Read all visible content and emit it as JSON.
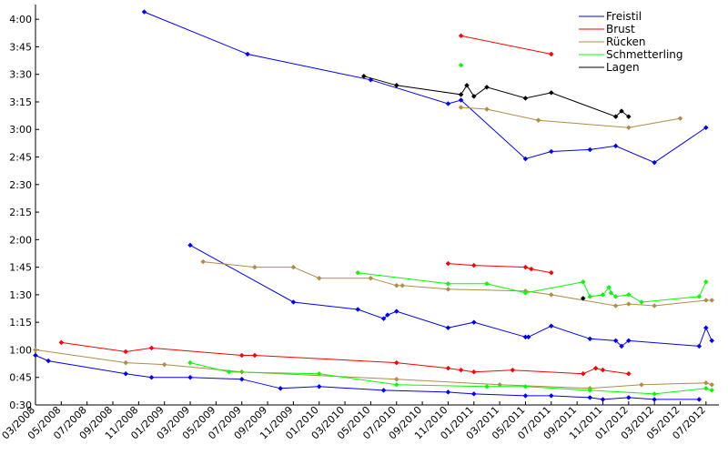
{
  "chart_data": {
    "type": "line",
    "title": "",
    "xlabel": "",
    "ylabel": "",
    "x_tick_labels": [
      "03/2008",
      "05/2008",
      "07/2008",
      "09/2008",
      "11/2008",
      "01/2009",
      "03/2009",
      "05/2009",
      "07/2009",
      "09/2009",
      "11/2009",
      "01/2010",
      "03/2010",
      "05/2010",
      "07/2010",
      "09/2010",
      "11/2010",
      "01/2011",
      "03/2011",
      "05/2011",
      "07/2011",
      "09/2011",
      "11/2011",
      "01/2012",
      "03/2012",
      "05/2012",
      "07/2012"
    ],
    "y_ticks": [
      {
        "value": 30,
        "label": "0:30"
      },
      {
        "value": 45,
        "label": "0:45"
      },
      {
        "value": 60,
        "label": "1:00"
      },
      {
        "value": 75,
        "label": "1:15"
      },
      {
        "value": 90,
        "label": "1:30"
      },
      {
        "value": 105,
        "label": "1:45"
      },
      {
        "value": 120,
        "label": "2:00"
      },
      {
        "value": 135,
        "label": "2:15"
      },
      {
        "value": 150,
        "label": "2:30"
      },
      {
        "value": 165,
        "label": "2:45"
      },
      {
        "value": 180,
        "label": "3:00"
      },
      {
        "value": 195,
        "label": "3:15"
      },
      {
        "value": 210,
        "label": "3:30"
      },
      {
        "value": 225,
        "label": "3:45"
      },
      {
        "value": 240,
        "label": "4:00"
      }
    ],
    "x_range": [
      "2008-03",
      "2012-08"
    ],
    "y_range_seconds": [
      30,
      248
    ],
    "x_unit": "date (YYYY-MM-DD)",
    "y_unit": "seconds (displayed as m:ss)",
    "grid": false,
    "legend_position": "top-right",
    "series": [
      {
        "name": "Freistil",
        "color": "#0000ff",
        "lines": [
          [
            [
              "2008-11-14",
              244
            ],
            [
              "2009-07-15",
              221
            ],
            [
              "2010-05-01",
              207
            ],
            [
              "2010-11-01",
              194
            ],
            [
              "2010-12-01",
              196
            ],
            [
              "2011-05-01",
              164
            ],
            [
              "2011-07-01",
              168
            ],
            [
              "2011-10-01",
              169
            ],
            [
              "2011-12-01",
              171
            ],
            [
              "2012-03-01",
              162
            ],
            [
              "2012-07-01",
              181
            ]
          ],
          [
            [
              "2009-03-01",
              117
            ],
            [
              "2009-11-01",
              86
            ],
            [
              "2010-04-01",
              82
            ],
            [
              "2010-06-01",
              77
            ],
            [
              "2010-06-10",
              79
            ],
            [
              "2010-07-01",
              81
            ],
            [
              "2010-11-01",
              72
            ],
            [
              "2011-01-01",
              75
            ],
            [
              "2011-05-01",
              67
            ],
            [
              "2011-05-08",
              67
            ],
            [
              "2011-07-01",
              73
            ],
            [
              "2011-10-01",
              66
            ],
            [
              "2011-12-01",
              65
            ],
            [
              "2011-12-15",
              62
            ],
            [
              "2012-01-01",
              65
            ],
            [
              "2012-06-15",
              62
            ],
            [
              "2012-07-01",
              72
            ],
            [
              "2012-07-15",
              65
            ]
          ],
          [
            [
              "2008-03-01",
              57
            ],
            [
              "2008-04-01",
              54
            ],
            [
              "2008-10-01",
              47
            ],
            [
              "2008-12-01",
              45
            ],
            [
              "2009-03-01",
              45
            ],
            [
              "2009-07-01",
              44
            ],
            [
              "2009-10-01",
              39
            ],
            [
              "2010-01-01",
              40
            ],
            [
              "2010-06-01",
              38
            ],
            [
              "2010-11-01",
              37
            ],
            [
              "2011-01-01",
              36
            ],
            [
              "2011-05-01",
              35
            ],
            [
              "2011-07-01",
              35
            ],
            [
              "2011-10-01",
              34
            ],
            [
              "2011-11-01",
              33
            ],
            [
              "2012-01-01",
              34
            ],
            [
              "2012-03-01",
              33
            ],
            [
              "2012-06-15",
              33
            ]
          ]
        ]
      },
      {
        "name": "Brust",
        "color": "#ff0000",
        "lines": [
          [
            [
              "2010-12-01",
              231
            ],
            [
              "2011-07-01",
              221
            ]
          ],
          [
            [
              "2010-11-01",
              107
            ],
            [
              "2011-01-01",
              106
            ],
            [
              "2011-05-01",
              105
            ],
            [
              "2011-05-15",
              104
            ],
            [
              "2011-07-01",
              102
            ]
          ],
          [
            [
              "2008-05-01",
              64
            ],
            [
              "2008-10-01",
              59
            ],
            [
              "2008-12-01",
              61
            ],
            [
              "2009-07-01",
              57
            ],
            [
              "2009-08-01",
              57
            ],
            [
              "2010-07-01",
              53
            ],
            [
              "2010-11-01",
              50
            ],
            [
              "2010-12-01",
              49
            ],
            [
              "2011-01-01",
              48
            ],
            [
              "2011-04-01",
              49
            ],
            [
              "2011-09-15",
              47
            ],
            [
              "2011-10-15",
              50
            ],
            [
              "2011-11-01",
              49
            ],
            [
              "2012-01-01",
              47
            ]
          ]
        ]
      },
      {
        "name": "Rücken",
        "color": "#b08c46",
        "lines": [
          [
            [
              "2010-12-01",
              192
            ],
            [
              "2011-02-01",
              191
            ],
            [
              "2011-06-01",
              185
            ],
            [
              "2012-01-01",
              181
            ],
            [
              "2012-05-01",
              186
            ]
          ],
          [
            [
              "2009-04-01",
              108
            ],
            [
              "2009-08-01",
              105
            ],
            [
              "2009-11-01",
              105
            ],
            [
              "2010-01-01",
              99
            ],
            [
              "2010-05-01",
              99
            ],
            [
              "2010-07-01",
              95
            ],
            [
              "2010-07-15",
              95
            ],
            [
              "2010-11-01",
              93
            ],
            [
              "2011-05-01",
              92
            ],
            [
              "2011-07-01",
              90
            ],
            [
              "2011-12-01",
              84
            ],
            [
              "2012-01-01",
              85
            ],
            [
              "2012-03-01",
              84
            ],
            [
              "2012-07-01",
              87
            ],
            [
              "2012-07-15",
              87
            ]
          ],
          [
            [
              "2008-03-01",
              60
            ],
            [
              "2008-10-01",
              53
            ],
            [
              "2009-01-01",
              52
            ],
            [
              "2009-07-01",
              48
            ],
            [
              "2010-07-01",
              44
            ],
            [
              "2011-03-01",
              41
            ],
            [
              "2011-10-01",
              39
            ],
            [
              "2012-02-01",
              41
            ],
            [
              "2012-07-01",
              42
            ],
            [
              "2012-07-15",
              41
            ]
          ]
        ]
      },
      {
        "name": "Schmetterling",
        "color": "#00ff00",
        "lines": [
          [
            [
              "2010-12-01",
              215
            ]
          ],
          [
            [
              "2010-04-01",
              102
            ],
            [
              "2010-11-01",
              96
            ],
            [
              "2011-02-01",
              96
            ],
            [
              "2011-05-01",
              91
            ],
            [
              "2011-09-15",
              97
            ],
            [
              "2011-10-01",
              89
            ],
            [
              "2011-11-01",
              90
            ],
            [
              "2011-11-15",
              94
            ],
            [
              "2011-11-20",
              91
            ],
            [
              "2011-12-01",
              89
            ],
            [
              "2012-01-01",
              90
            ],
            [
              "2012-02-01",
              86
            ],
            [
              "2012-06-15",
              89
            ],
            [
              "2012-07-01",
              97
            ]
          ],
          [
            [
              "2009-03-01",
              53
            ],
            [
              "2009-06-01",
              48
            ],
            [
              "2010-01-01",
              47
            ],
            [
              "2010-07-01",
              41
            ],
            [
              "2011-02-01",
              40
            ],
            [
              "2011-05-01",
              40
            ],
            [
              "2011-10-01",
              38
            ],
            [
              "2012-03-01",
              36
            ],
            [
              "2012-07-01",
              39
            ],
            [
              "2012-07-15",
              38
            ]
          ]
        ]
      },
      {
        "name": "Lagen",
        "color": "#000000",
        "lines": [
          [
            [
              "2010-04-15",
              209
            ],
            [
              "2010-07-01",
              204
            ],
            [
              "2010-12-01",
              199
            ],
            [
              "2010-12-15",
              204
            ],
            [
              "2011-01-01",
              198
            ],
            [
              "2011-02-01",
              203
            ],
            [
              "2011-05-01",
              197
            ],
            [
              "2011-07-01",
              200
            ],
            [
              "2011-12-01",
              187
            ],
            [
              "2011-12-15",
              190
            ],
            [
              "2012-01-01",
              187
            ]
          ],
          [
            [
              "2011-09-15",
              88
            ]
          ]
        ]
      }
    ]
  }
}
